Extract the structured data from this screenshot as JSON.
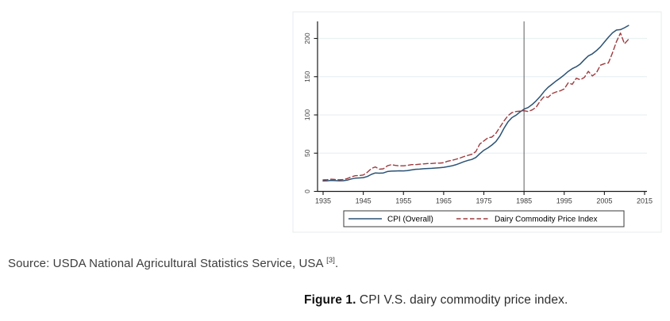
{
  "figure": {
    "source_prefix": "Source: USDA National Agricultural Statistics Service, USA ",
    "source_ref": "[3]",
    "source_period": ".",
    "caption_label": "Figure 1.",
    "caption_text": "CPI V.S. dairy commodity price index."
  },
  "chart_data": {
    "type": "line",
    "title": "",
    "xlabel": "",
    "ylabel": "",
    "grid": "horizontal",
    "legend_position": "bottom",
    "xlim": [
      1933,
      2016
    ],
    "ylim": [
      0,
      222
    ],
    "xticks": [
      1935,
      1945,
      1955,
      1965,
      1975,
      1985,
      1995,
      2005,
      2015
    ],
    "yticks": [
      0,
      50,
      100,
      150,
      200
    ],
    "ref_line_x": 1985,
    "x": [
      1935,
      1936,
      1937,
      1938,
      1939,
      1940,
      1941,
      1942,
      1943,
      1944,
      1945,
      1946,
      1947,
      1948,
      1949,
      1950,
      1951,
      1952,
      1953,
      1954,
      1955,
      1956,
      1957,
      1958,
      1959,
      1960,
      1961,
      1962,
      1963,
      1964,
      1965,
      1966,
      1967,
      1968,
      1969,
      1970,
      1971,
      1972,
      1973,
      1974,
      1975,
      1976,
      1977,
      1978,
      1979,
      1980,
      1981,
      1982,
      1983,
      1984,
      1985,
      1986,
      1987,
      1988,
      1989,
      1990,
      1991,
      1992,
      1993,
      1994,
      1995,
      1996,
      1997,
      1998,
      1999,
      2000,
      2001,
      2002,
      2003,
      2004,
      2005,
      2006,
      2007,
      2008,
      2009,
      2010,
      2011
    ],
    "series": [
      {
        "name": "CPI (Overall)",
        "color": "#2b5274",
        "style": "solid",
        "values": [
          13.7,
          13.9,
          14.4,
          14.1,
          13.9,
          14.0,
          14.7,
          16.3,
          17.3,
          17.6,
          18.0,
          19.5,
          22.3,
          24.1,
          23.8,
          24.1,
          26.0,
          26.5,
          26.7,
          26.9,
          26.8,
          27.2,
          28.1,
          28.9,
          29.1,
          29.6,
          29.9,
          30.2,
          30.6,
          31.0,
          31.5,
          32.4,
          33.4,
          34.8,
          36.7,
          38.8,
          40.5,
          41.8,
          44.4,
          49.3,
          53.8,
          56.9,
          60.6,
          65.2,
          72.6,
          82.4,
          90.9,
          96.5,
          99.6,
          103.9,
          107.6,
          109.6,
          113.6,
          118.3,
          124.0,
          130.7,
          136.2,
          140.3,
          144.5,
          148.2,
          152.4,
          156.9,
          160.5,
          163.0,
          166.6,
          172.2,
          177.1,
          179.9,
          184.0,
          188.9,
          195.3,
          201.6,
          207.3,
          211.0,
          211.5,
          214.0,
          217.0
        ]
      },
      {
        "name": "Dairy Commodity Price Index",
        "color": "#9e3a3e",
        "style": "dashed",
        "values": [
          15.0,
          15.3,
          16.0,
          15.5,
          15.2,
          15.5,
          16.8,
          19.0,
          20.5,
          20.8,
          21.5,
          25.0,
          30.0,
          32.0,
          29.0,
          29.5,
          33.5,
          35.0,
          34.0,
          33.5,
          33.5,
          34.0,
          35.0,
          35.0,
          35.5,
          36.0,
          36.5,
          36.5,
          37.0,
          37.0,
          37.5,
          39.5,
          40.5,
          42.0,
          43.5,
          45.5,
          47.0,
          48.5,
          52.0,
          62.0,
          66.0,
          70.0,
          71.0,
          76.0,
          84.0,
          92.0,
          99.0,
          103.0,
          104.5,
          105.0,
          105.5,
          104.5,
          106.5,
          110.0,
          118.0,
          124.0,
          123.0,
          128.0,
          130.0,
          131.5,
          134.0,
          142.0,
          140.0,
          148.0,
          146.0,
          149.0,
          157.0,
          151.0,
          155.0,
          165.0,
          167.0,
          168.0,
          181.0,
          196.0,
          207.0,
          193.0,
          199.0
        ]
      }
    ]
  }
}
